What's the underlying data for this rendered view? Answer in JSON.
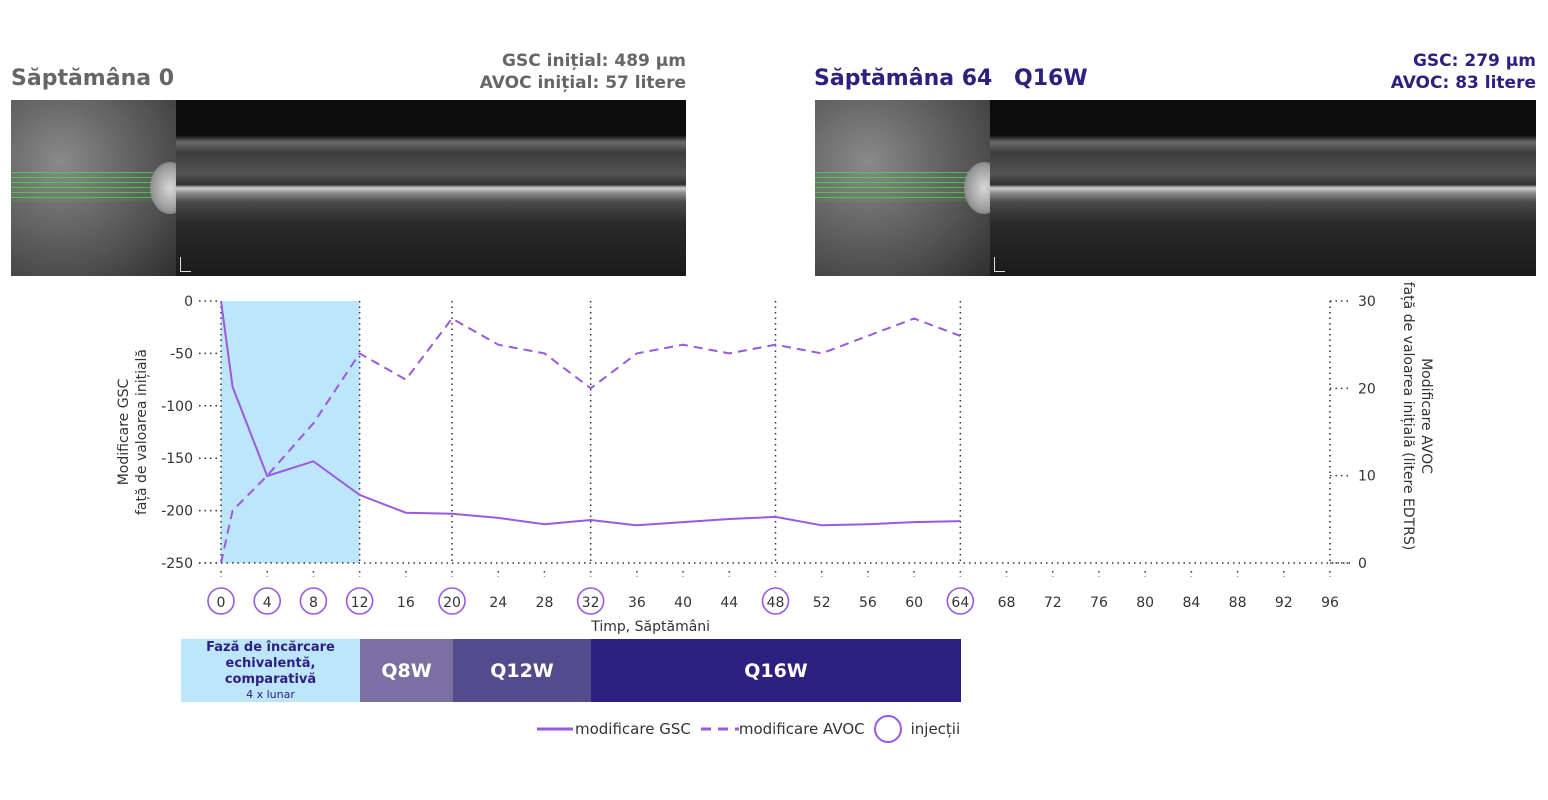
{
  "colors": {
    "line": "#9b59e0",
    "loading": "#bde6fb",
    "q8w": "#7b70a3",
    "q12w": "#544b8c",
    "q16w": "#2e2080",
    "navy": "#2e2080",
    "grey": "#666666"
  },
  "left_panel": {
    "title": "Săptămâna 0",
    "stat1": "GSC inițial: 489 µm",
    "stat2": "AVOC inițial: 57 litere"
  },
  "right_panel": {
    "title": "Săptămâna 64",
    "subtitle": "Q16W",
    "stat1": "GSC: 279 µm",
    "stat2": "AVOC: 83 litere"
  },
  "phases": {
    "loading_title": "Fază de încărcare echivalentă, comparativă",
    "loading_sub": "4 x lunar",
    "q8w": "Q8W",
    "q12w": "Q12W",
    "q16w": "Q16W"
  },
  "legend": {
    "gsc": "modificare GSC",
    "avoc": "modificare AVOC",
    "injections": "injecții"
  },
  "chart_data": {
    "type": "line",
    "xlabel": "Timp, Săptămâni",
    "ylabel_left": [
      "Modificare GSC",
      "față de valoarea inițială"
    ],
    "ylabel_right": [
      "Modificare AVOC",
      "față de valoarea inițială (litere EDTRS)"
    ],
    "x_ticks": [
      0,
      4,
      8,
      12,
      16,
      20,
      24,
      28,
      32,
      36,
      40,
      44,
      48,
      52,
      56,
      60,
      64,
      68,
      72,
      76,
      80,
      84,
      88,
      92,
      96
    ],
    "y_left_ticks": [
      0,
      -50,
      -100,
      -150,
      -200,
      -250
    ],
    "y_left_lim": [
      -250,
      0
    ],
    "y_right_ticks": [
      30,
      20,
      10,
      0
    ],
    "y_right_lim": [
      0,
      30
    ],
    "xlim": [
      0,
      96
    ],
    "vertical_gridlines": [
      0,
      12,
      20,
      32,
      48,
      64,
      96
    ],
    "injection_weeks": [
      0,
      4,
      8,
      12,
      20,
      32,
      48,
      64
    ],
    "loading_phase": [
      0,
      12
    ],
    "series": [
      {
        "name": "modificare GSC",
        "axis": "left",
        "style": "solid",
        "x": [
          0,
          1,
          4,
          8,
          12,
          16,
          20,
          24,
          28,
          32,
          36,
          40,
          44,
          48,
          52,
          56,
          60,
          64
        ],
        "y": [
          0,
          -82,
          -167,
          -153,
          -185,
          -202,
          -203,
          -207,
          -213,
          -209,
          -214,
          -211,
          -208,
          -206,
          -214,
          -213,
          -211,
          -210
        ]
      },
      {
        "name": "modificare AVOC",
        "axis": "right",
        "style": "dashed",
        "x": [
          0,
          1,
          4,
          8,
          12,
          16,
          20,
          24,
          28,
          32,
          36,
          40,
          44,
          48,
          52,
          56,
          60,
          64
        ],
        "y": [
          0,
          6,
          10,
          16,
          24,
          21,
          28,
          25,
          24,
          20,
          24,
          25,
          24,
          25,
          24,
          26,
          28,
          26
        ]
      }
    ]
  }
}
